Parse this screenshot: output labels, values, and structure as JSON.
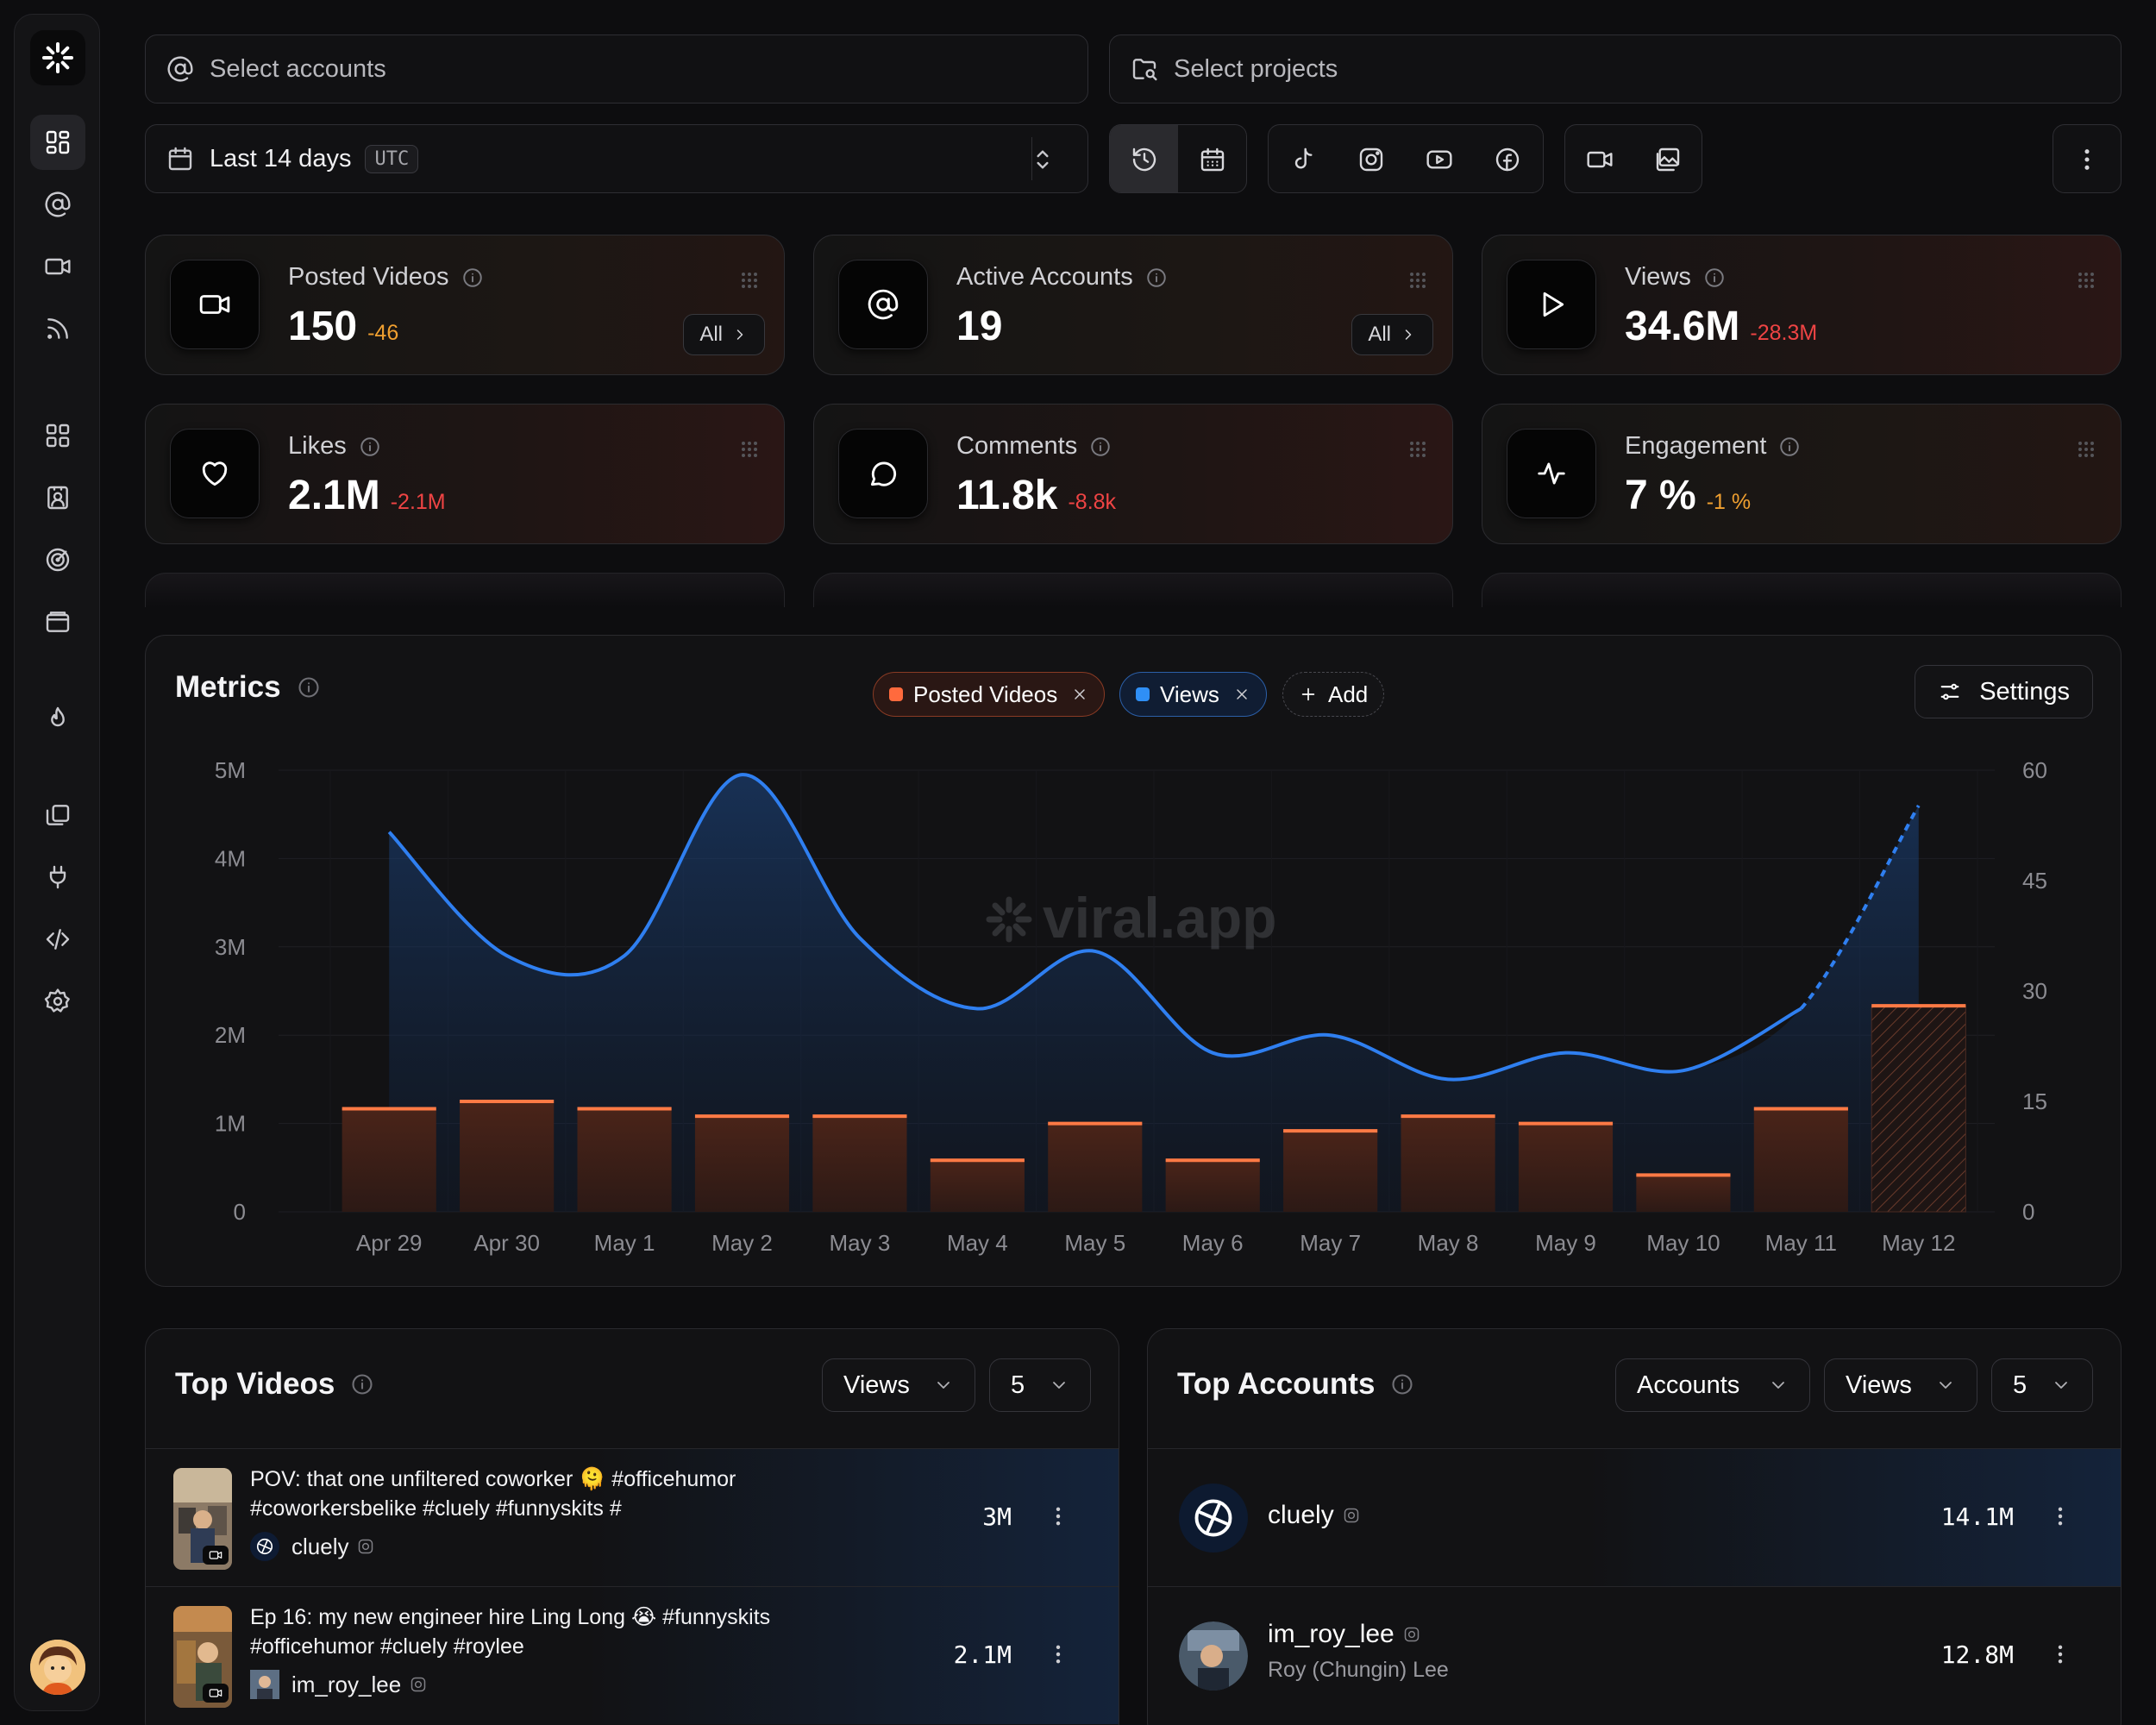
{
  "filters": {
    "accounts_placeholder": "Select accounts",
    "projects_placeholder": "Select projects",
    "date_range": "Last 14 days",
    "timezone": "UTC"
  },
  "sidebar": {
    "icons": [
      "dashboard-icon",
      "at-sign-icon",
      "video-icon",
      "rss-icon",
      "layout-icon",
      "contact-icon",
      "target-icon",
      "wallet-icon",
      "flame-icon",
      "copy-icon",
      "plug-icon",
      "code-icon",
      "settings-icon"
    ]
  },
  "stats": [
    {
      "label": "Posted Videos",
      "value": "150",
      "delta": "-46",
      "delta_color": "#f0a030",
      "has_all": true,
      "all_label": "All"
    },
    {
      "label": "Active Accounts",
      "value": "19",
      "delta": "",
      "delta_color": "#f0a030",
      "has_all": true,
      "all_label": "All"
    },
    {
      "label": "Views",
      "value": "34.6M",
      "delta": "-28.3M",
      "delta_color": "#ef4444",
      "has_all": false
    },
    {
      "label": "Likes",
      "value": "2.1M",
      "delta": "-2.1M",
      "delta_color": "#ef4444",
      "has_all": false
    },
    {
      "label": "Comments",
      "value": "11.8k",
      "delta": "-8.8k",
      "delta_color": "#ef4444",
      "has_all": false
    },
    {
      "label": "Engagement",
      "value": "7 %",
      "delta": "-1 %",
      "delta_color": "#f0a030",
      "has_all": false
    }
  ],
  "metrics": {
    "title": "Metrics",
    "chips": {
      "posted_videos": "Posted Videos",
      "views": "Views",
      "add": "Add"
    },
    "settings_label": "Settings",
    "watermark": "viral.app"
  },
  "chart_data": {
    "type": "bar",
    "categories": [
      "Apr 29",
      "Apr 30",
      "May 1",
      "May 2",
      "May 3",
      "May 4",
      "May 5",
      "May 6",
      "May 7",
      "May 8",
      "May 9",
      "May 10",
      "May 11",
      "May 12"
    ],
    "series": [
      {
        "name": "Posted Videos",
        "type": "bar",
        "axis": "right",
        "color": "#ff7a45",
        "values": [
          14,
          15,
          14,
          13,
          13,
          7,
          12,
          7,
          11,
          13,
          12,
          5,
          14,
          28
        ],
        "last_partial": true
      },
      {
        "name": "Views",
        "type": "area",
        "axis": "left",
        "color": "#2f7ff0",
        "values": [
          4.3,
          2.9,
          2.9,
          4.95,
          3.1,
          2.3,
          2.95,
          1.8,
          2.0,
          1.5,
          1.8,
          1.6,
          2.3,
          4.6
        ],
        "last_projected": true
      }
    ],
    "left_axis": {
      "ticks": [
        "0",
        "1M",
        "2M",
        "3M",
        "4M",
        "5M"
      ],
      "ylim": [
        0,
        5
      ]
    },
    "right_axis": {
      "ticks": [
        "0",
        "15",
        "30",
        "45",
        "60"
      ],
      "ylim": [
        0,
        60
      ]
    },
    "grid": true
  },
  "top_videos": {
    "title": "Top Videos",
    "sort": "Views",
    "count": "5",
    "rows": [
      {
        "title": "POV: that one unfiltered coworker 🫠 #officehumor #coworkersbelike #cluely #funnyskits #",
        "account": "cluely",
        "value": "3M"
      },
      {
        "title": "Ep 16: my new engineer hire Ling Long 😭 #funnyskits #officehumor #cluely #roylee",
        "account": "im_roy_lee",
        "value": "2.1M"
      }
    ]
  },
  "top_accounts": {
    "title": "Top Accounts",
    "group": "Accounts",
    "sort": "Views",
    "count": "5",
    "rows": [
      {
        "name": "cluely",
        "subtitle": "",
        "value": "14.1M"
      },
      {
        "name": "im_roy_lee",
        "subtitle": "Roy (Chungin) Lee",
        "value": "12.8M"
      }
    ]
  }
}
